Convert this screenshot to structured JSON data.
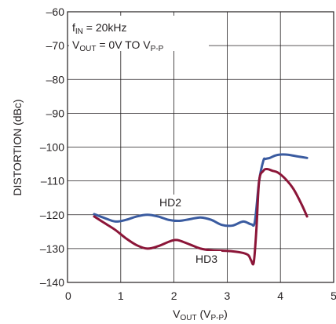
{
  "chart_data": {
    "type": "line",
    "title": "",
    "xlabel": "VOUT (VP-P)",
    "xlabel_main": "V",
    "xlabel_sub": "OUT",
    "xlabel_unit_open": " (V",
    "xlabel_unit_sub": "P-P",
    "xlabel_unit_close": ")",
    "ylabel": "DISTORTION (dBc)",
    "xlim": [
      0,
      5
    ],
    "ylim": [
      -140,
      -60
    ],
    "x_ticks": [
      0,
      1,
      2,
      3,
      4,
      5
    ],
    "x_tick_labels": [
      "0",
      "1",
      "2",
      "3",
      "4",
      "5"
    ],
    "y_ticks": [
      -140,
      -130,
      -120,
      -110,
      -100,
      -90,
      -80,
      -70,
      -60
    ],
    "y_tick_labels": [
      "–140",
      "–130",
      "–120",
      "–110",
      "–100",
      "–90",
      "–80",
      "–70",
      "–60"
    ],
    "grid": true,
    "annotations": {
      "fin_main": "f",
      "fin_sub": "IN",
      "fin_value": " = 20kHz",
      "vout_main": "V",
      "vout_sub": "OUT",
      "vout_value": " = 0V TO V",
      "vout_unit_sub": "P-P"
    },
    "series": [
      {
        "name": "HD2",
        "color": "#3a5ba0",
        "x": [
          0.5,
          0.7,
          0.9,
          1.1,
          1.3,
          1.5,
          1.7,
          1.9,
          2.1,
          2.3,
          2.5,
          2.7,
          2.9,
          3.1,
          3.3,
          3.45,
          3.52,
          3.6,
          3.68,
          3.72,
          3.8,
          3.9,
          4.0,
          4.1,
          4.2,
          4.3,
          4.5
        ],
        "y": [
          -119.8,
          -121.0,
          -122.0,
          -121.5,
          -120.5,
          -120.0,
          -120.5,
          -121.5,
          -121.8,
          -121.3,
          -120.8,
          -121.5,
          -123.0,
          -123.2,
          -122.0,
          -122.8,
          -122.0,
          -110.0,
          -104.0,
          -103.5,
          -103.2,
          -102.5,
          -102.2,
          -102.2,
          -102.4,
          -102.7,
          -103.2
        ]
      },
      {
        "name": "HD3",
        "color": "#8b1538",
        "x": [
          0.5,
          0.7,
          0.9,
          1.1,
          1.3,
          1.5,
          1.7,
          1.9,
          2.0,
          2.1,
          2.3,
          2.5,
          2.7,
          2.9,
          3.1,
          3.3,
          3.4,
          3.45,
          3.5,
          3.55,
          3.6,
          3.68,
          3.75,
          3.85,
          3.95,
          4.1,
          4.25,
          4.4,
          4.5
        ],
        "y": [
          -120.5,
          -122.5,
          -124.5,
          -127.0,
          -129.0,
          -130.0,
          -129.3,
          -128.0,
          -127.5,
          -127.6,
          -128.8,
          -130.0,
          -130.5,
          -130.6,
          -130.8,
          -131.3,
          -132.0,
          -133.5,
          -134.0,
          -124.0,
          -110.0,
          -107.0,
          -106.5,
          -107.0,
          -107.5,
          -109.5,
          -112.5,
          -117.0,
          -120.5
        ]
      }
    ]
  }
}
